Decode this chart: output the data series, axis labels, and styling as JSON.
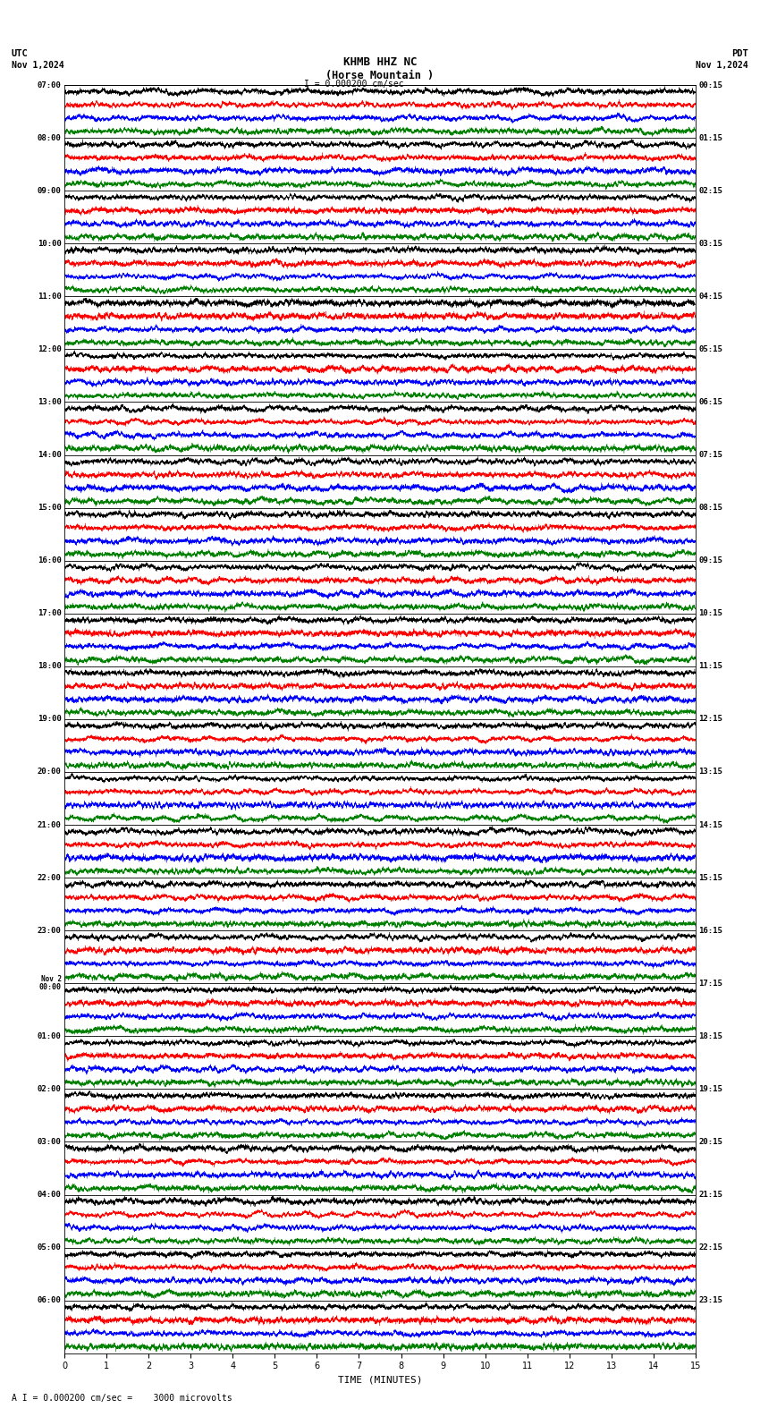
{
  "title_line1": "KHMB HHZ NC",
  "title_line2": "(Horse Mountain )",
  "scale_label": "I = 0.000200 cm/sec",
  "utc_label": "UTC",
  "pdt_label": "PDT",
  "date_left": "Nov 1,2024",
  "date_right": "Nov 1,2024",
  "bottom_label": "A I = 0.000200 cm/sec =    3000 microvolts",
  "xlabel": "TIME (MINUTES)",
  "left_times": [
    "07:00",
    "08:00",
    "09:00",
    "10:00",
    "11:00",
    "12:00",
    "13:00",
    "14:00",
    "15:00",
    "16:00",
    "17:00",
    "18:00",
    "19:00",
    "20:00",
    "21:00",
    "22:00",
    "23:00",
    "Nov 2\n00:00",
    "01:00",
    "02:00",
    "03:00",
    "04:00",
    "05:00",
    "06:00"
  ],
  "right_times": [
    "00:15",
    "01:15",
    "02:15",
    "03:15",
    "04:15",
    "05:15",
    "06:15",
    "07:15",
    "08:15",
    "09:15",
    "10:15",
    "11:15",
    "12:15",
    "13:15",
    "14:15",
    "15:15",
    "16:15",
    "17:15",
    "18:15",
    "19:15",
    "20:15",
    "21:15",
    "22:15",
    "23:15"
  ],
  "n_rows": 24,
  "traces_per_row": 4,
  "colors": [
    "black",
    "red",
    "blue",
    "green"
  ],
  "bg_color": "white",
  "fig_width": 8.5,
  "fig_height": 15.84,
  "dpi": 100,
  "xmin": 0,
  "xmax": 15,
  "xticks": [
    0,
    1,
    2,
    3,
    4,
    5,
    6,
    7,
    8,
    9,
    10,
    11,
    12,
    13,
    14,
    15
  ],
  "seed": 42,
  "n_points": 8000,
  "trace_amplitude": 0.42,
  "high_freq": 120.0,
  "noise_level": 0.7
}
